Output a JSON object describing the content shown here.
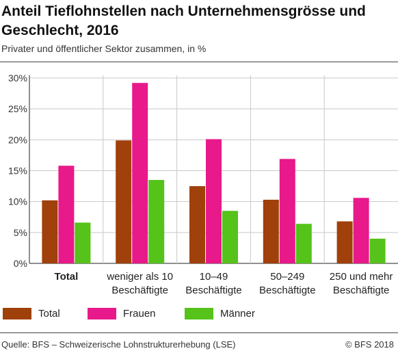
{
  "title": "Anteil Tieflohnstellen nach Unternehmensgrösse und Geschlecht, 2016",
  "subtitle": "Privater und öffentlicher Sektor zusammen, in %",
  "source": "Quelle: BFS – Schweizerische Lohnstrukturerhebung (LSE)",
  "copyright": "© BFS 2018",
  "chart_data": {
    "type": "bar",
    "title": "Anteil Tieflohnstellen nach Unternehmensgrösse und Geschlecht, 2016",
    "subtitle": "Privater und öffentlicher Sektor zusammen, in %",
    "categories": [
      [
        "Total"
      ],
      [
        "weniger als 10",
        "Beschäftigte"
      ],
      [
        "10–49",
        "Beschäftigte"
      ],
      [
        "50–249",
        "Beschäftigte"
      ],
      [
        "250 und mehr",
        "Beschäftigte"
      ]
    ],
    "category_bold": [
      true,
      false,
      false,
      false,
      false
    ],
    "series": [
      {
        "name": "Total",
        "color": "#a0400a",
        "values": [
          10.2,
          19.9,
          12.5,
          10.3,
          6.8
        ]
      },
      {
        "name": "Frauen",
        "color": "#e8198b",
        "values": [
          15.8,
          29.2,
          20.1,
          16.9,
          10.6
        ]
      },
      {
        "name": "Männer",
        "color": "#55c31a",
        "values": [
          6.6,
          13.5,
          8.5,
          6.4,
          4.0
        ]
      }
    ],
    "yticks": [
      "0%",
      "5%",
      "10%",
      "15%",
      "20%",
      "25%",
      "30%"
    ],
    "ylim": [
      0,
      30
    ],
    "xlabel": "",
    "ylabel": "",
    "grid": true,
    "legend_position": "bottom"
  }
}
